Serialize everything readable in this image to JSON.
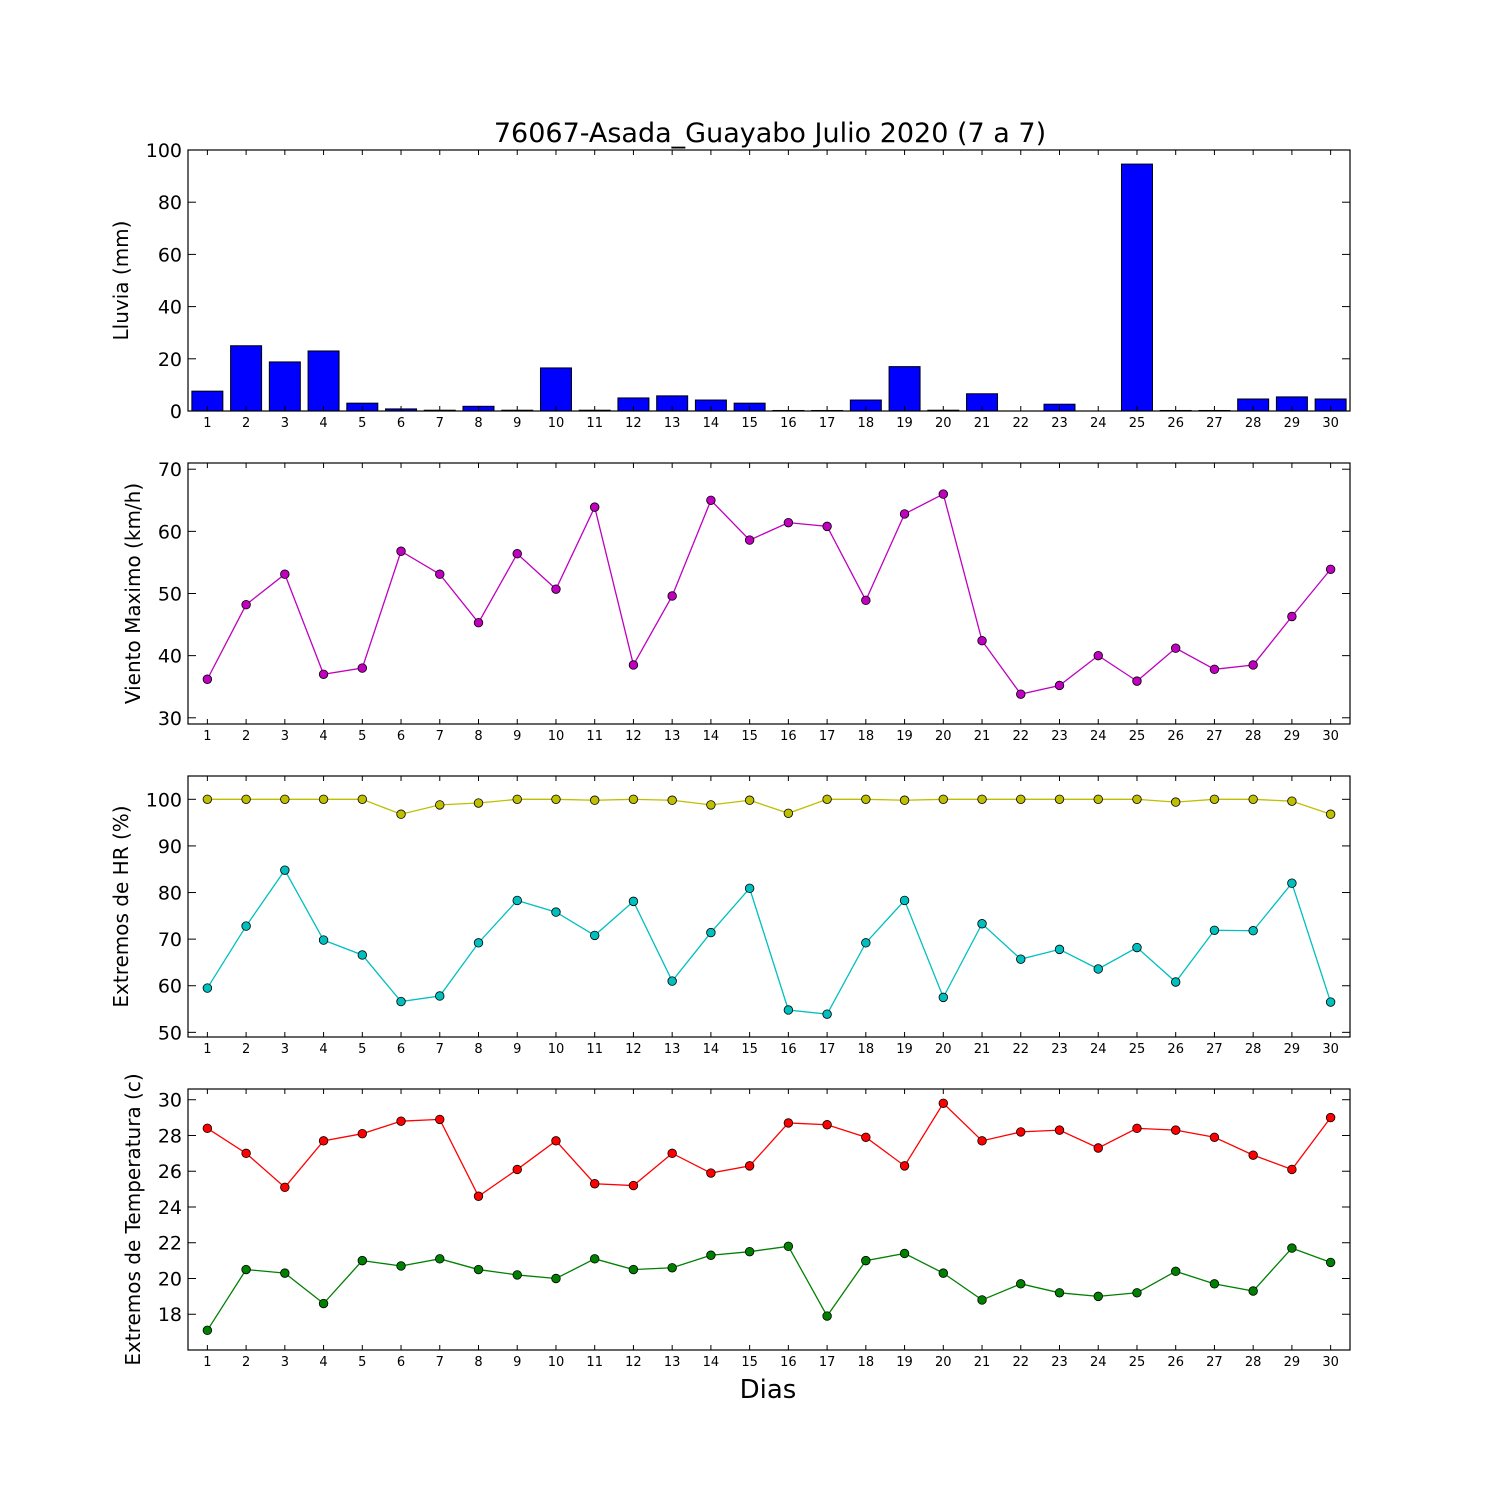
{
  "figure_title": "76067-Asada_Guayabo Julio 2020  (7 a 7)",
  "xlabel": "Dias",
  "chart_data": [
    {
      "type": "bar",
      "ylabel": "Lluvia (mm)",
      "ylim": [
        0,
        100
      ],
      "yticks": [
        0,
        20,
        40,
        60,
        80,
        100
      ],
      "x": [
        1,
        2,
        3,
        4,
        5,
        6,
        7,
        8,
        9,
        10,
        11,
        12,
        13,
        14,
        15,
        16,
        17,
        18,
        19,
        20,
        21,
        22,
        23,
        24,
        25,
        26,
        27,
        28,
        29,
        30
      ],
      "series": [
        {
          "color": "#0000ff",
          "values": [
            7.6,
            25,
            18.8,
            23,
            3,
            0.8,
            0.3,
            1.8,
            0.3,
            16.5,
            0.3,
            5,
            5.8,
            4.2,
            3,
            0.2,
            0.2,
            4.2,
            17,
            0.3,
            6.6,
            0,
            2.6,
            0,
            94.6,
            0.2,
            0.2,
            4.6,
            5.4,
            4.6
          ]
        }
      ],
      "grid": false
    },
    {
      "type": "line",
      "ylabel": "Viento Maximo (km/h)",
      "ylim": [
        29,
        71
      ],
      "yticks": [
        30,
        40,
        50,
        60,
        70
      ],
      "x": [
        1,
        2,
        3,
        4,
        5,
        6,
        7,
        8,
        9,
        10,
        11,
        12,
        13,
        14,
        15,
        16,
        17,
        18,
        19,
        20,
        21,
        22,
        23,
        24,
        25,
        26,
        27,
        28,
        29,
        30
      ],
      "series": [
        {
          "color": "#bf00bf",
          "values": [
            36.2,
            48.2,
            53.1,
            37,
            38,
            56.8,
            53.1,
            45.3,
            56.4,
            50.7,
            63.9,
            38.5,
            49.6,
            65,
            58.6,
            61.4,
            60.8,
            48.9,
            62.8,
            66,
            42.4,
            33.8,
            35.2,
            40,
            35.9,
            41.2,
            37.8,
            38.5,
            46.3,
            53.9
          ]
        }
      ],
      "grid": false
    },
    {
      "type": "line",
      "ylabel": "Extremos de HR (%)",
      "ylim": [
        49,
        105
      ],
      "yticks": [
        50,
        60,
        70,
        80,
        90,
        100
      ],
      "x": [
        1,
        2,
        3,
        4,
        5,
        6,
        7,
        8,
        9,
        10,
        11,
        12,
        13,
        14,
        15,
        16,
        17,
        18,
        19,
        20,
        21,
        22,
        23,
        24,
        25,
        26,
        27,
        28,
        29,
        30
      ],
      "series": [
        {
          "color": "#bfbf00",
          "values": [
            100,
            100,
            100,
            100,
            100,
            96.8,
            98.8,
            99.2,
            100,
            100,
            99.8,
            100,
            99.8,
            98.8,
            99.8,
            97,
            100,
            100,
            99.8,
            100,
            100,
            100,
            100,
            100,
            100,
            99.4,
            100,
            100,
            99.6,
            96.8
          ]
        },
        {
          "color": "#00bfbf",
          "values": [
            59.5,
            72.8,
            84.8,
            69.8,
            66.6,
            56.6,
            57.8,
            69.2,
            78.3,
            75.8,
            70.8,
            78.1,
            61,
            71.4,
            80.9,
            54.8,
            53.9,
            69.2,
            78.3,
            57.5,
            73.3,
            65.7,
            67.8,
            63.6,
            68.2,
            60.8,
            71.9,
            71.8,
            82,
            56.5
          ]
        }
      ],
      "grid": false
    },
    {
      "type": "line",
      "ylabel": "Extremos de Temperatura (c)",
      "ylim": [
        16,
        30.6
      ],
      "yticks": [
        18,
        20,
        22,
        24,
        26,
        28,
        30
      ],
      "x": [
        1,
        2,
        3,
        4,
        5,
        6,
        7,
        8,
        9,
        10,
        11,
        12,
        13,
        14,
        15,
        16,
        17,
        18,
        19,
        20,
        21,
        22,
        23,
        24,
        25,
        26,
        27,
        28,
        29,
        30
      ],
      "series": [
        {
          "color": "#ff0000",
          "values": [
            28.4,
            27,
            25.1,
            27.7,
            28.1,
            28.8,
            28.9,
            24.6,
            26.1,
            27.7,
            25.3,
            25.2,
            27,
            25.9,
            26.3,
            28.7,
            28.6,
            27.9,
            26.3,
            29.8,
            27.7,
            28.2,
            28.3,
            27.3,
            28.4,
            28.3,
            27.9,
            26.9,
            26.1,
            29
          ]
        },
        {
          "color": "#008000",
          "values": [
            17.1,
            20.5,
            20.3,
            18.6,
            21,
            20.7,
            21.1,
            20.5,
            20.2,
            20,
            21.1,
            20.5,
            20.6,
            21.3,
            21.5,
            21.8,
            17.9,
            21,
            21.4,
            20.3,
            18.8,
            19.7,
            19.2,
            19,
            19.2,
            20.4,
            19.7,
            19.3,
            21.7,
            20.9
          ]
        }
      ],
      "grid": false
    }
  ]
}
